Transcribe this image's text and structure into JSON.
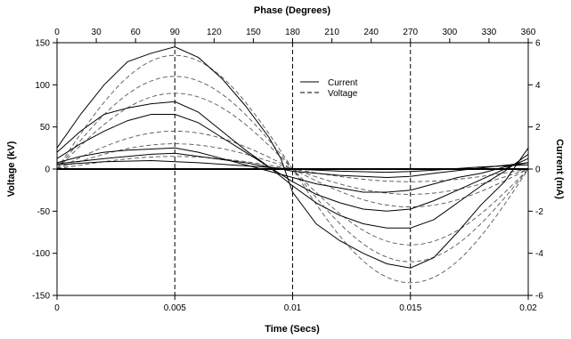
{
  "chart_data": {
    "type": "line",
    "grid": false,
    "legend_position": "top-center",
    "bottom_axis": {
      "label": "Time (Secs)",
      "range": [
        0,
        0.02
      ],
      "ticks": [
        "0",
        "0.005",
        "0.01",
        "0.015",
        "0.02"
      ]
    },
    "top_axis": {
      "label": "Phase (Degrees)",
      "range": [
        0,
        360
      ],
      "ticks": [
        "0",
        "30",
        "60",
        "90",
        "120",
        "150",
        "180",
        "210",
        "240",
        "270",
        "300",
        "330",
        "360"
      ]
    },
    "left_axis": {
      "label": "Voltage (kV)",
      "range": [
        -150,
        150
      ],
      "ticks": [
        "150",
        "100",
        "50",
        "0",
        "-50",
        "-100",
        "-150"
      ]
    },
    "right_axis": {
      "label": "Current (mA)",
      "range": [
        -6,
        6
      ],
      "ticks": [
        "6",
        "4",
        "2",
        "0",
        "-2",
        "-4",
        "-6"
      ]
    },
    "reference_lines_x": [
      0.005,
      0.01,
      0.015
    ],
    "legend": [
      {
        "label": "Current",
        "style": "solid"
      },
      {
        "label": "Voltage",
        "style": "dashed"
      }
    ],
    "voltage_amplitudes_kv": [
      135,
      110,
      90,
      45,
      30,
      15
    ],
    "current_series": [
      {
        "x": [
          0,
          0.001,
          0.002,
          0.003,
          0.004,
          0.005,
          0.006,
          0.007,
          0.008,
          0.009,
          0.0095,
          0.01,
          0.011,
          0.012,
          0.013,
          0.014,
          0.015,
          0.016,
          0.017,
          0.018,
          0.019,
          0.02
        ],
        "y": [
          1.0,
          2.6,
          4.0,
          5.1,
          5.5,
          5.8,
          5.3,
          4.3,
          3.0,
          1.5,
          0.5,
          -1.1,
          -2.6,
          -3.4,
          -4.0,
          -4.5,
          -4.7,
          -4.2,
          -3.0,
          -1.7,
          -0.6,
          1.0
        ]
      },
      {
        "x": [
          0,
          0.001,
          0.002,
          0.003,
          0.004,
          0.005,
          0.006,
          0.007,
          0.008,
          0.009,
          0.01,
          0.011,
          0.012,
          0.013,
          0.014,
          0.015,
          0.016,
          0.017,
          0.018,
          0.019,
          0.02
        ],
        "y": [
          0.8,
          1.8,
          2.6,
          2.9,
          3.1,
          3.2,
          2.7,
          1.8,
          0.9,
          0.1,
          -0.8,
          -1.6,
          -2.2,
          -2.6,
          -2.8,
          -2.8,
          -2.4,
          -1.6,
          -0.8,
          -0.1,
          0.7
        ]
      },
      {
        "x": [
          0,
          0.001,
          0.002,
          0.003,
          0.004,
          0.005,
          0.006,
          0.007,
          0.008,
          0.009,
          0.01,
          0.011,
          0.012,
          0.013,
          0.014,
          0.015,
          0.016,
          0.017,
          0.018,
          0.019,
          0.02
        ],
        "y": [
          0.5,
          1.2,
          1.8,
          2.3,
          2.6,
          2.6,
          2.2,
          1.5,
          0.8,
          0.1,
          -0.6,
          -1.2,
          -1.6,
          -1.9,
          -2.0,
          -1.9,
          -1.5,
          -1.0,
          -0.5,
          0.0,
          0.5
        ]
      },
      {
        "x": [
          0,
          0.001,
          0.002,
          0.003,
          0.004,
          0.005,
          0.006,
          0.007,
          0.008,
          0.009,
          0.01,
          0.011,
          0.012,
          0.013,
          0.014,
          0.015,
          0.016,
          0.017,
          0.018,
          0.019,
          0.02
        ],
        "y": [
          0.3,
          0.6,
          0.8,
          0.9,
          0.95,
          1.0,
          0.8,
          0.5,
          0.2,
          -0.1,
          -0.4,
          -0.7,
          -0.9,
          -1.1,
          -1.1,
          -1.0,
          -0.7,
          -0.4,
          -0.2,
          0.1,
          0.3
        ]
      },
      {
        "x": [
          0,
          0.002,
          0.004,
          0.005,
          0.006,
          0.008,
          0.01,
          0.012,
          0.014,
          0.015,
          0.016,
          0.018,
          0.02
        ],
        "y": [
          0.25,
          0.5,
          0.7,
          0.75,
          0.6,
          0.3,
          -0.1,
          -0.3,
          -0.4,
          -0.35,
          -0.2,
          0.05,
          0.3
        ]
      },
      {
        "x": [
          0,
          0.002,
          0.004,
          0.006,
          0.008,
          0.01,
          0.012,
          0.014,
          0.015,
          0.016,
          0.018,
          0.02
        ],
        "y": [
          0.2,
          0.35,
          0.4,
          0.3,
          0.15,
          0.0,
          -0.1,
          -0.15,
          -0.12,
          -0.05,
          0.1,
          0.2
        ]
      }
    ]
  }
}
